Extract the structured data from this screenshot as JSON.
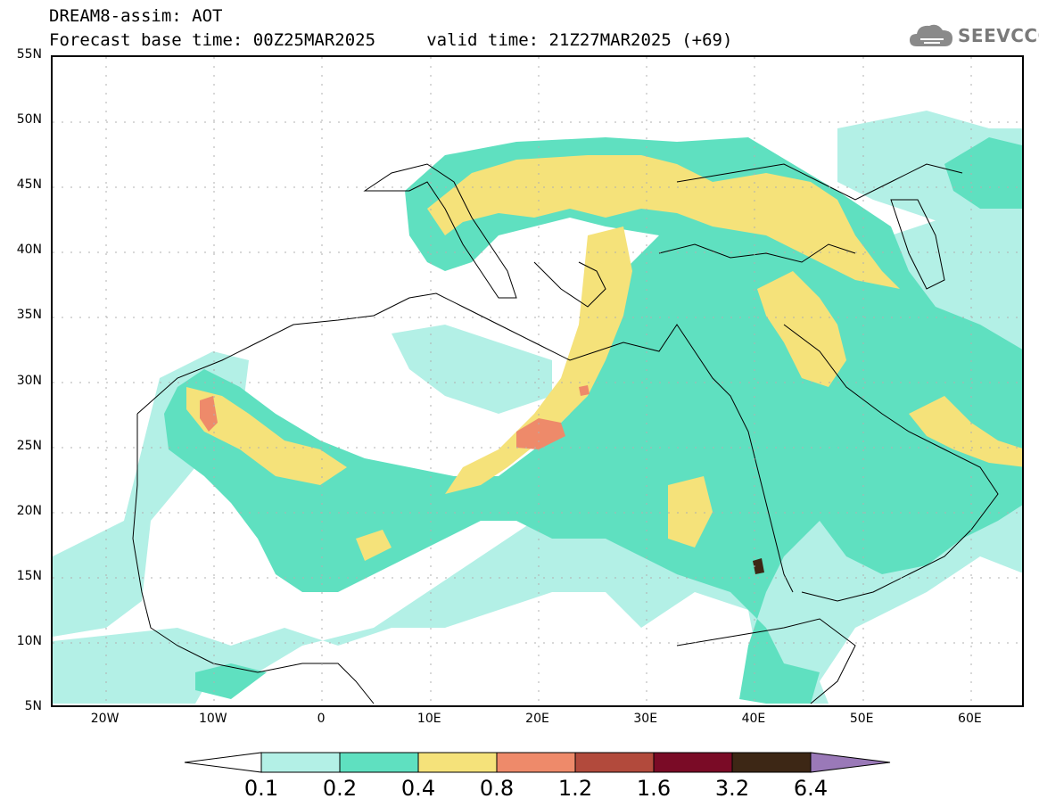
{
  "header": {
    "line1": "DREAM8-assim: AOT",
    "line2": "Forecast base time: 00Z25MAR2025     valid time: 21Z27MAR2025 (+69)"
  },
  "logo": {
    "text": "SEEVCCC",
    "icon": "cloud-icon"
  },
  "map": {
    "lat_labels": [
      "55N",
      "50N",
      "45N",
      "40N",
      "35N",
      "30N",
      "25N",
      "20N",
      "15N",
      "10N",
      "5N"
    ],
    "lon_labels": [
      "20W",
      "10W",
      "0",
      "10E",
      "20E",
      "30E",
      "40E",
      "50E",
      "60E"
    ],
    "extent": {
      "lon": [
        -25,
        65
      ],
      "lat": [
        5,
        55
      ]
    }
  },
  "colorbar": {
    "labels": [
      "0.1",
      "0.2",
      "0.4",
      "0.8",
      "1.2",
      "1.6",
      "3.2",
      "6.4"
    ],
    "colors": [
      "#ffffff",
      "#b3f0e6",
      "#5fe0c0",
      "#f5e27a",
      "#ee8a6a",
      "#b24a3c",
      "#7a0b26",
      "#3d2715",
      "#9a79b8"
    ]
  }
}
